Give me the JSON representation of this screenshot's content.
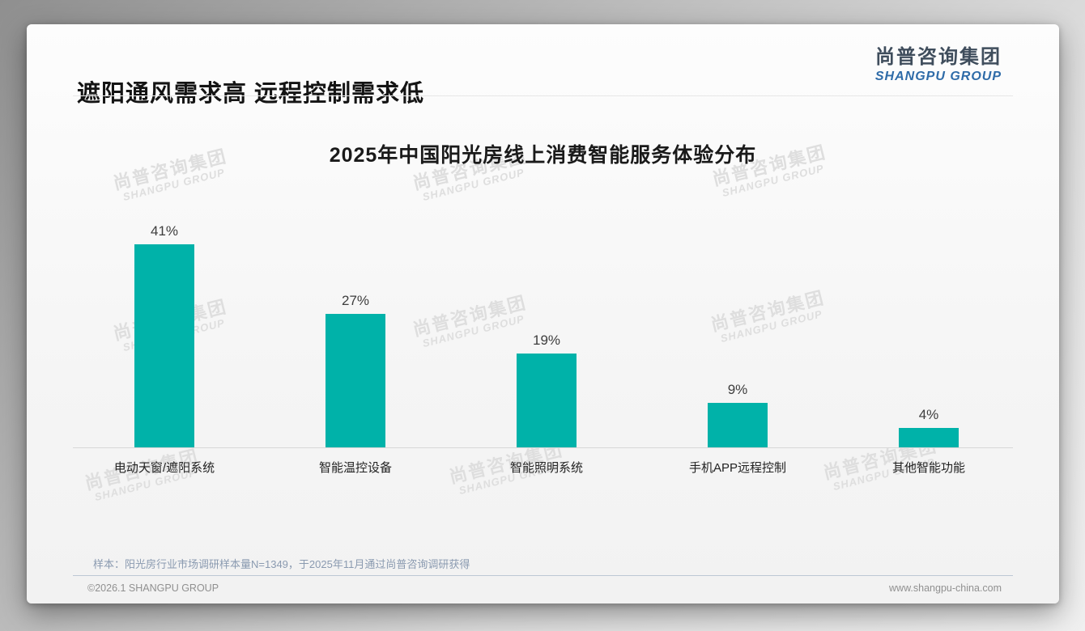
{
  "slide": {
    "title": "遮阳通风需求高 远程控制需求低",
    "logo": {
      "cn": "尚普咨询集团",
      "en": "SHANGPU GROUP"
    },
    "watermark": {
      "cn": "尚普咨询集团",
      "en": "SHANGPU GROUP"
    },
    "note": "样本：阳光房行业市场调研样本量N=1349，于2025年11月通过尚普咨询调研获得",
    "footer": {
      "copyright": "©2026.1 SHANGPU GROUP",
      "website": "www.shangpu-china.com"
    }
  },
  "chart_data": {
    "type": "bar",
    "title": "2025年中国阳光房线上消费智能服务体验分布",
    "categories": [
      "电动天窗/遮阳系统",
      "智能温控设备",
      "智能照明系统",
      "手机APP远程控制",
      "其他智能功能"
    ],
    "values": [
      41,
      27,
      19,
      9,
      4
    ],
    "value_labels": [
      "41%",
      "27%",
      "19%",
      "9%",
      "4%"
    ],
    "unit": "%",
    "ylim": [
      0,
      45
    ],
    "grid": false,
    "legend": "none",
    "bar_color": "#00b2a9",
    "value_label_color": "#3d3d3d",
    "accent_blue": "#2e6ba8"
  }
}
